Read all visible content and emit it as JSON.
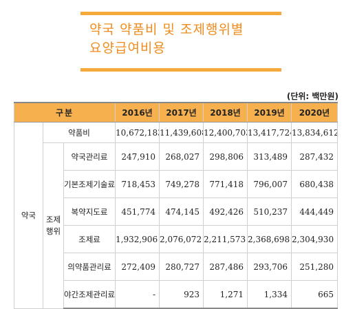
{
  "title": {
    "line1": "약국 약품비 및 조제행위별",
    "line2": "요양급여비용"
  },
  "unit_note": "(단위: 백만원)",
  "table": {
    "header": {
      "category": "구분",
      "years": [
        "2016년",
        "2017년",
        "2018년",
        "2019년",
        "2020년"
      ]
    },
    "group_label": "약국",
    "subgroup_label_1": "조제",
    "subgroup_label_2": "행위",
    "drug_cost": {
      "label": "약품비",
      "values": [
        "10,672,183",
        "11,439,608",
        "12,400,703",
        "13,417,724",
        "13,834,612"
      ]
    },
    "items": [
      {
        "label": "약국관리료",
        "values": [
          "247,910",
          "268,027",
          "298,806",
          "313,489",
          "287,432"
        ]
      },
      {
        "label": "기본조제기술료",
        "values": [
          "718,453",
          "749,278",
          "771,418",
          "796,007",
          "680,438"
        ]
      },
      {
        "label": "복약지도료",
        "values": [
          "451,774",
          "474,145",
          "492,426",
          "510,237",
          "444,449"
        ]
      },
      {
        "label": "조제료",
        "values": [
          "1,932,906",
          "2,076,072",
          "2,211,573",
          "2,368,698",
          "2,304,930"
        ]
      },
      {
        "label": "의약품관리료",
        "values": [
          "272,409",
          "280,727",
          "287,486",
          "293,706",
          "251,280"
        ]
      },
      {
        "label": "야간조제관리료",
        "values": [
          "-",
          "923",
          "1,271",
          "1,334",
          "665"
        ]
      }
    ]
  }
}
